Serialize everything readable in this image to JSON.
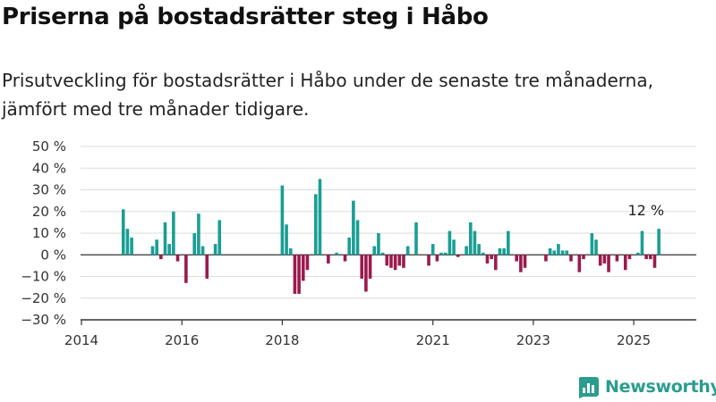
{
  "header": {
    "title": "Priserna på bostadsrätter steg i Håbo",
    "subtitle": "Prisutveckling för bostadsrätter i Håbo under de senaste tre månaderna, jämfört med tre månader tidigare."
  },
  "brand": {
    "name": "Newsworthy"
  },
  "colors": {
    "positive": "#1a9e95",
    "negative": "#9b1a4e",
    "grid": "#dddddd",
    "axis": "#333333"
  },
  "chart_data": {
    "type": "bar",
    "x_unit": "months since January 2014",
    "y_unit": "%",
    "ylim": [
      -30,
      50
    ],
    "xlim_years": [
      2014,
      2026
    ],
    "y_ticks": [
      -30,
      -20,
      -10,
      0,
      10,
      20,
      30,
      40,
      50
    ],
    "y_tick_labels": [
      "−30 %",
      "−20 %",
      "−10 %",
      "0 %",
      "10 %",
      "20 %",
      "30 %",
      "40 %",
      "50 %"
    ],
    "x_ticks": [
      "2014",
      "2016",
      "2018",
      "2021",
      "2023",
      "2025"
    ],
    "x_tick_months": [
      0,
      24,
      48,
      84,
      108,
      132
    ],
    "grid": true,
    "legend": "none",
    "annotation": {
      "text": "12 %",
      "month": 139,
      "value": 12
    },
    "points": [
      {
        "month": 10,
        "value": 21
      },
      {
        "month": 11,
        "value": 12
      },
      {
        "month": 12,
        "value": 8
      },
      {
        "month": 17,
        "value": 4
      },
      {
        "month": 18,
        "value": 7
      },
      {
        "month": 19,
        "value": -2
      },
      {
        "month": 20,
        "value": 15
      },
      {
        "month": 21,
        "value": 5
      },
      {
        "month": 22,
        "value": 20
      },
      {
        "month": 23,
        "value": -3
      },
      {
        "month": 25,
        "value": -13
      },
      {
        "month": 27,
        "value": 10
      },
      {
        "month": 28,
        "value": 19
      },
      {
        "month": 29,
        "value": 4
      },
      {
        "month": 30,
        "value": -11
      },
      {
        "month": 32,
        "value": 5
      },
      {
        "month": 33,
        "value": 16
      },
      {
        "month": 48,
        "value": 32
      },
      {
        "month": 49,
        "value": 14
      },
      {
        "month": 50,
        "value": 3
      },
      {
        "month": 51,
        "value": -18
      },
      {
        "month": 52,
        "value": -18
      },
      {
        "month": 53,
        "value": -12
      },
      {
        "month": 54,
        "value": -7
      },
      {
        "month": 56,
        "value": 28
      },
      {
        "month": 57,
        "value": 35
      },
      {
        "month": 59,
        "value": -4
      },
      {
        "month": 61,
        "value": 1
      },
      {
        "month": 63,
        "value": -3
      },
      {
        "month": 64,
        "value": 8
      },
      {
        "month": 65,
        "value": 25
      },
      {
        "month": 66,
        "value": 16
      },
      {
        "month": 67,
        "value": -11
      },
      {
        "month": 68,
        "value": -17
      },
      {
        "month": 69,
        "value": -11
      },
      {
        "month": 70,
        "value": 4
      },
      {
        "month": 71,
        "value": 10
      },
      {
        "month": 72,
        "value": 1
      },
      {
        "month": 73,
        "value": -5
      },
      {
        "month": 74,
        "value": -6
      },
      {
        "month": 75,
        "value": -7
      },
      {
        "month": 76,
        "value": -5
      },
      {
        "month": 77,
        "value": -6
      },
      {
        "month": 78,
        "value": 4
      },
      {
        "month": 80,
        "value": 15
      },
      {
        "month": 83,
        "value": -5
      },
      {
        "month": 84,
        "value": 5
      },
      {
        "month": 85,
        "value": -3
      },
      {
        "month": 86,
        "value": 1
      },
      {
        "month": 87,
        "value": 1
      },
      {
        "month": 88,
        "value": 11
      },
      {
        "month": 89,
        "value": 7
      },
      {
        "month": 90,
        "value": -1
      },
      {
        "month": 92,
        "value": 4
      },
      {
        "month": 93,
        "value": 15
      },
      {
        "month": 94,
        "value": 11
      },
      {
        "month": 95,
        "value": 5
      },
      {
        "month": 96,
        "value": 1
      },
      {
        "month": 97,
        "value": -4
      },
      {
        "month": 98,
        "value": -2
      },
      {
        "month": 99,
        "value": -7
      },
      {
        "month": 100,
        "value": 3
      },
      {
        "month": 101,
        "value": 3
      },
      {
        "month": 102,
        "value": 11
      },
      {
        "month": 104,
        "value": -3
      },
      {
        "month": 105,
        "value": -8
      },
      {
        "month": 106,
        "value": -6
      },
      {
        "month": 111,
        "value": -3
      },
      {
        "month": 112,
        "value": 3
      },
      {
        "month": 113,
        "value": 2
      },
      {
        "month": 114,
        "value": 5
      },
      {
        "month": 115,
        "value": 2
      },
      {
        "month": 116,
        "value": 2
      },
      {
        "month": 117,
        "value": -3
      },
      {
        "month": 119,
        "value": -8
      },
      {
        "month": 120,
        "value": -2
      },
      {
        "month": 122,
        "value": 10
      },
      {
        "month": 123,
        "value": 7
      },
      {
        "month": 124,
        "value": -5
      },
      {
        "month": 125,
        "value": -4
      },
      {
        "month": 126,
        "value": -8
      },
      {
        "month": 128,
        "value": -3
      },
      {
        "month": 130,
        "value": -7
      },
      {
        "month": 131,
        "value": -2
      },
      {
        "month": 133,
        "value": 1
      },
      {
        "month": 134,
        "value": 11
      },
      {
        "month": 135,
        "value": -2
      },
      {
        "month": 136,
        "value": -2
      },
      {
        "month": 137,
        "value": -6
      },
      {
        "month": 138,
        "value": 12
      }
    ]
  }
}
